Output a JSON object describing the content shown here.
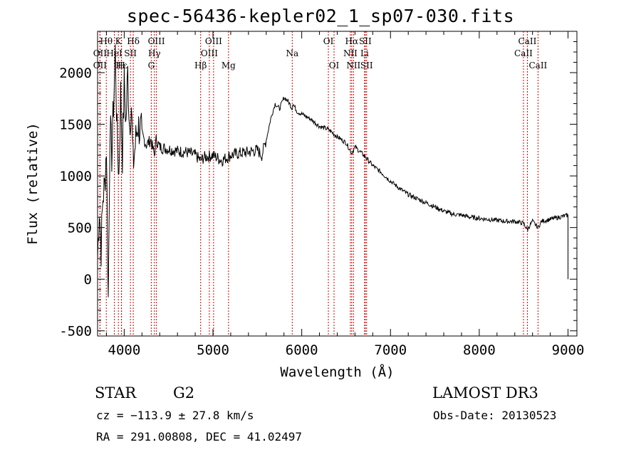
{
  "chart_data": {
    "type": "line",
    "title": "spec-56436-kepler02_1_sp07-030.fits",
    "xlabel": "Wavelength (Å)",
    "ylabel": "Flux (relative)",
    "xlim": [
      3700,
      9100
    ],
    "ylim": [
      -550,
      2400
    ],
    "xticks": [
      4000,
      5000,
      6000,
      7000,
      8000,
      9000
    ],
    "yticks": [
      -500,
      0,
      500,
      1000,
      1500,
      2000
    ],
    "series": [
      {
        "name": "flux",
        "x": [
          3700,
          3720,
          3740,
          3760,
          3780,
          3800,
          3820,
          3840,
          3860,
          3880,
          3900,
          3920,
          3940,
          3960,
          3980,
          4000,
          4020,
          4040,
          4060,
          4080,
          4100,
          4150,
          4200,
          4250,
          4300,
          4340,
          4360,
          4400,
          4500,
          4600,
          4700,
          4800,
          4860,
          4900,
          5000,
          5100,
          5200,
          5300,
          5400,
          5500,
          5550,
          5600,
          5650,
          5700,
          5750,
          5800,
          5850,
          5893,
          5900,
          5950,
          6000,
          6100,
          6200,
          6300,
          6400,
          6500,
          6563,
          6600,
          6700,
          6800,
          6900,
          7000,
          7100,
          7200,
          7300,
          7400,
          7500,
          7600,
          7700,
          7800,
          7900,
          8000,
          8100,
          8200,
          8300,
          8400,
          8500,
          8540,
          8600,
          8662,
          8700,
          8800,
          8900,
          9000
        ],
        "y": [
          200,
          700,
          300,
          800,
          900,
          1300,
          -200,
          1500,
          1200,
          1700,
          2200,
          1400,
          1000,
          1800,
          1200,
          1900,
          1500,
          2000,
          1500,
          1700,
          1100,
          1500,
          1400,
          1300,
          1350,
          1200,
          1350,
          1280,
          1260,
          1240,
          1230,
          1200,
          1150,
          1180,
          1200,
          1150,
          1200,
          1220,
          1230,
          1250,
          1200,
          1350,
          1550,
          1700,
          1650,
          1760,
          1720,
          1650,
          1700,
          1620,
          1600,
          1550,
          1480,
          1450,
          1380,
          1320,
          1220,
          1280,
          1200,
          1100,
          1030,
          950,
          880,
          820,
          780,
          740,
          700,
          660,
          630,
          620,
          600,
          590,
          580,
          570,
          560,
          560,
          540,
          480,
          560,
          500,
          560,
          580,
          600,
          620
        ]
      }
    ],
    "line_labels": [
      {
        "label": "Hθ",
        "x": 3798,
        "row": 0
      },
      {
        "label": "OII",
        "x": 3727,
        "row": 1
      },
      {
        "label": "OII",
        "x": 3727,
        "row": 2
      },
      {
        "label": "K",
        "x": 3934,
        "row": 0
      },
      {
        "label": "HeI",
        "x": 3889,
        "row": 1
      },
      {
        "label": "H",
        "x": 3969,
        "row": 2
      },
      {
        "label": "Hε",
        "x": 3970,
        "row": 2
      },
      {
        "label": "SII",
        "x": 4070,
        "row": 1
      },
      {
        "label": "Hδ",
        "x": 4102,
        "row": 0
      },
      {
        "label": "OIII",
        "x": 4363,
        "row": 0
      },
      {
        "label": "Hγ",
        "x": 4340,
        "row": 1
      },
      {
        "label": "G",
        "x": 4305,
        "row": 2
      },
      {
        "label": "Hβ",
        "x": 4861,
        "row": 2
      },
      {
        "label": "OIII",
        "x": 4959,
        "row": 1
      },
      {
        "label": "OIII",
        "x": 5007,
        "row": 0
      },
      {
        "label": "Mg",
        "x": 5175,
        "row": 2
      },
      {
        "label": "Na",
        "x": 5893,
        "row": 1
      },
      {
        "label": "OI",
        "x": 6300,
        "row": 0
      },
      {
        "label": "OI",
        "x": 6364,
        "row": 2
      },
      {
        "label": "Hα",
        "x": 6563,
        "row": 0
      },
      {
        "label": "NII",
        "x": 6548,
        "row": 1
      },
      {
        "label": "NII",
        "x": 6583,
        "row": 2
      },
      {
        "label": "SII",
        "x": 6716,
        "row": 0
      },
      {
        "label": "Li",
        "x": 6708,
        "row": 1
      },
      {
        "label": "SII",
        "x": 6731,
        "row": 2
      },
      {
        "label": "CaII",
        "x": 8542,
        "row": 0
      },
      {
        "label": "CaII",
        "x": 8498,
        "row": 1
      },
      {
        "label": "CaII",
        "x": 8662,
        "row": 2
      }
    ],
    "line_marker_color": "#cc0000"
  },
  "info": {
    "class_label": "STAR",
    "subclass": "G2",
    "survey": "LAMOST DR3",
    "velocity": "cz = −113.9 ± 27.8 km/s",
    "obs_date": "Obs-Date: 20130523",
    "coords": "RA = 291.00808, DEC =  41.02497"
  }
}
